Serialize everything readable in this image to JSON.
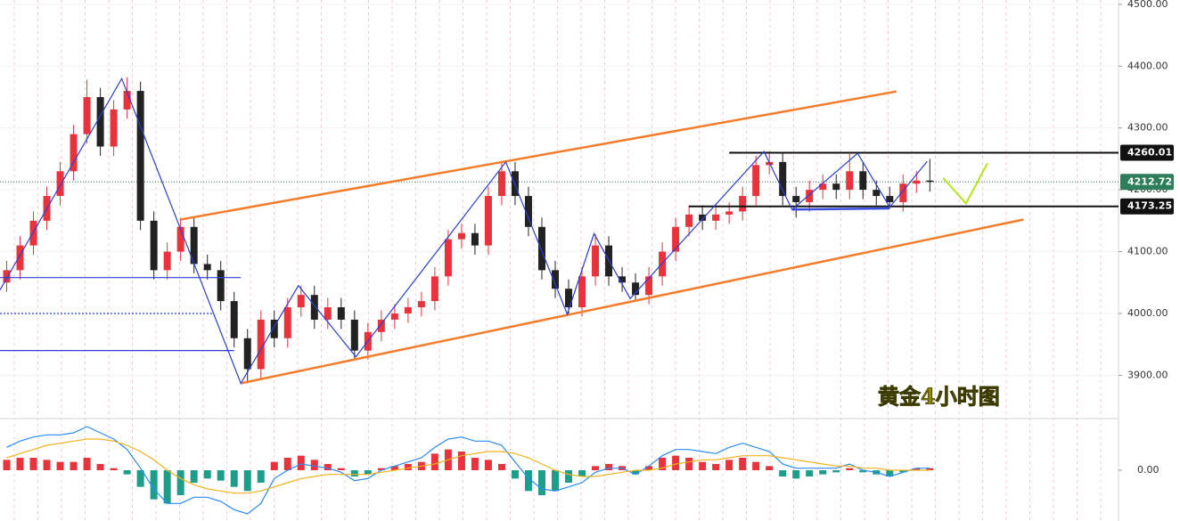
{
  "chart_data": {
    "type": "candlestick",
    "xlim": [
      -0.5,
      83.1
    ],
    "ylim": [
      3830,
      4507
    ],
    "yticks": [
      {
        "value": 3900,
        "label": "3900.00"
      },
      {
        "value": 4000,
        "label": "4000.00"
      },
      {
        "value": 4100,
        "label": "4100.00"
      },
      {
        "value": 4200,
        "label": "4200.00"
      },
      {
        "value": 4300,
        "label": "4300.00"
      },
      {
        "value": 4400,
        "label": "4400.00"
      },
      {
        "value": 4500,
        "label": "4500.00"
      }
    ],
    "up_color": "#e8333d",
    "down_color": "#222222",
    "open": [
      4050,
      4070,
      4110,
      4150,
      4190,
      4230,
      4290,
      4350,
      4270,
      4330,
      4360,
      4150,
      4070,
      4100,
      4140,
      4080,
      4070,
      4020,
      3960,
      3910,
      3990,
      3960,
      4010,
      4030,
      3990,
      4010,
      3990,
      3940,
      3970,
      3990,
      4000,
      4010,
      4020,
      4060,
      4120,
      4130,
      4110,
      4190,
      4230,
      4190,
      4140,
      4070,
      4040,
      4010,
      4060,
      4110,
      4060,
      4050,
      4030,
      4060,
      4100,
      4140,
      4160,
      4150,
      4160,
      4165,
      4190,
      4240,
      4245,
      4190,
      4180,
      4200,
      4210,
      4200,
      4230,
      4200,
      4190,
      4180,
      4210,
      4215
    ],
    "high": [
      4085,
      4125,
      4165,
      4205,
      4245,
      4305,
      4378,
      4365,
      4345,
      4382,
      4375,
      4165,
      4115,
      4155,
      4155,
      4095,
      4085,
      4035,
      3975,
      4005,
      4005,
      4025,
      4045,
      4045,
      4025,
      4025,
      4005,
      3985,
      4005,
      4015,
      4025,
      4035,
      4075,
      4135,
      4145,
      4145,
      4205,
      4247,
      4245,
      4205,
      4155,
      4085,
      4055,
      4075,
      4128,
      4125,
      4075,
      4065,
      4075,
      4115,
      4155,
      4175,
      4175,
      4175,
      4180,
      4205,
      4255,
      4262,
      4260,
      4205,
      4215,
      4225,
      4225,
      4258,
      4245,
      4215,
      4205,
      4225,
      4230,
      4250
    ],
    "low": [
      4035,
      4055,
      4095,
      4135,
      4175,
      4215,
      4275,
      4255,
      4255,
      4315,
      4135,
      4055,
      4055,
      4085,
      4065,
      4055,
      4005,
      3945,
      3887,
      3895,
      3945,
      3945,
      3995,
      3975,
      3975,
      3975,
      3925,
      3925,
      3955,
      3975,
      3985,
      3995,
      4005,
      4045,
      4105,
      4095,
      4095,
      4175,
      4175,
      4125,
      4055,
      4025,
      3998,
      3995,
      4045,
      4045,
      4035,
      4022,
      4015,
      4045,
      4085,
      4125,
      4135,
      4135,
      4145,
      4150,
      4175,
      4225,
      4175,
      4155,
      4165,
      4185,
      4185,
      4185,
      4185,
      4175,
      4170,
      4165,
      4195,
      4197
    ],
    "close": [
      4070,
      4110,
      4150,
      4190,
      4230,
      4290,
      4350,
      4270,
      4330,
      4360,
      4150,
      4070,
      4100,
      4140,
      4080,
      4070,
      4020,
      3960,
      3910,
      3990,
      3960,
      4010,
      4030,
      3990,
      4010,
      3990,
      3940,
      3970,
      3990,
      4000,
      4010,
      4020,
      4060,
      4120,
      4130,
      4110,
      4190,
      4230,
      4190,
      4140,
      4070,
      4040,
      4010,
      4060,
      4110,
      4060,
      4050,
      4030,
      4060,
      4100,
      4140,
      4160,
      4150,
      4160,
      4165,
      4190,
      4240,
      4245,
      4190,
      4180,
      4200,
      4210,
      4200,
      4230,
      4200,
      4190,
      4180,
      4210,
      4215,
      4212.72
    ],
    "lines": [
      {
        "color": "#f57c2a",
        "width": 2.5,
        "points": [
          [
            13,
            4152
          ],
          [
            66.5,
            4359
          ]
        ]
      },
      {
        "color": "#f57c2a",
        "width": 2.5,
        "points": [
          [
            17.5,
            3887
          ],
          [
            76,
            4152
          ]
        ]
      },
      {
        "color": "#111111",
        "width": 2,
        "points": [
          [
            54,
            4260.01
          ],
          [
            83.1,
            4260.01
          ]
        ]
      },
      {
        "color": "#111111",
        "width": 2,
        "points": [
          [
            51,
            4173.25
          ],
          [
            83.1,
            4173.25
          ]
        ]
      },
      {
        "color": "#2b3fd6",
        "width": 1.2,
        "points": [
          [
            -0.5,
            4058
          ],
          [
            17.5,
            4058
          ]
        ]
      },
      {
        "color": "#2b3fd6",
        "width": 1.2,
        "points": [
          [
            -0.5,
            3940
          ],
          [
            17,
            3940
          ]
        ]
      },
      {
        "color": "#2b3fd6",
        "width": 1.2,
        "dash": true,
        "points": [
          [
            -0.5,
            4000
          ],
          [
            15.5,
            4000
          ]
        ]
      },
      {
        "color": "#3a4fe0",
        "width": 2.5,
        "points": [
          [
            58.7,
            4168
          ],
          [
            66,
            4170
          ]
        ]
      },
      {
        "color": "#2b3fd6",
        "width": 1.2,
        "points": [
          [
            -0.5,
            4038
          ],
          [
            8.6,
            4380
          ],
          [
            17.5,
            3887
          ],
          [
            21.8,
            4045
          ],
          [
            26.1,
            3930
          ],
          [
            37.3,
            4245
          ],
          [
            41.9,
            3999
          ],
          [
            43.9,
            4129
          ],
          [
            46.6,
            4024
          ],
          [
            56.6,
            4262
          ],
          [
            58.7,
            4168
          ],
          [
            63.6,
            4259
          ],
          [
            66,
            4172
          ],
          [
            68.8,
            4246
          ]
        ]
      },
      {
        "color": "#b5e61d",
        "width": 2,
        "points": [
          [
            70,
            4219
          ],
          [
            71.7,
            4178
          ],
          [
            73.3,
            4243
          ]
        ]
      }
    ],
    "price_marks": [
      {
        "value": 4260.01,
        "color": "#111111"
      },
      {
        "value": 4212.72,
        "color": "#2e7d5b"
      },
      {
        "value": 4173.25,
        "color": "#111111"
      }
    ],
    "annotation": "黄金4小时图",
    "macd": {
      "ylim": [
        -24,
        24
      ],
      "yticks": [
        {
          "value": 0,
          "label": "0.00"
        }
      ],
      "up_color": "#e8333d",
      "down_color": "#1e9e8a",
      "hist": [
        5,
        6,
        6,
        5,
        4,
        4,
        6,
        3,
        1,
        -2,
        -8,
        -14,
        -16,
        -12,
        -6,
        -4,
        -5,
        -8,
        -10,
        -6,
        4,
        6,
        7,
        5,
        3,
        1,
        -3,
        -2,
        1,
        2,
        3,
        4,
        8,
        10,
        9,
        6,
        5,
        3,
        -4,
        -10,
        -12,
        -10,
        -6,
        -3,
        2,
        3,
        2,
        -2,
        2,
        6,
        7,
        6,
        4,
        3,
        5,
        6,
        4,
        2,
        -3,
        -4,
        -3,
        -2,
        -1,
        1,
        -1,
        -2,
        -3,
        -1,
        1,
        1
      ],
      "series": [
        {
          "color": "#2a8bf2",
          "values": [
            11,
            14,
            16,
            17,
            17,
            18,
            21,
            18,
            15,
            10,
            1,
            -9,
            -16,
            -16,
            -13,
            -13,
            -15,
            -19,
            -21,
            -16,
            -4,
            0,
            3,
            2,
            1,
            -1,
            -5,
            -4,
            0,
            2,
            4,
            6,
            11,
            15,
            16,
            14,
            14,
            12,
            4,
            -4,
            -9,
            -10,
            -8,
            -6,
            -1,
            1,
            1,
            -2,
            2,
            7,
            10,
            10,
            9,
            8,
            11,
            13,
            11,
            9,
            3,
            1,
            1,
            1,
            1,
            3,
            0,
            -1,
            -3,
            -1,
            1,
            1
          ]
        },
        {
          "color": "#f2b21e",
          "values": [
            6,
            8,
            10,
            12,
            13,
            14,
            15,
            15,
            14,
            12,
            9,
            5,
            0,
            -4,
            -7,
            -9,
            -10,
            -11,
            -11,
            -10,
            -8,
            -6,
            -4,
            -3,
            -2,
            -2,
            -2,
            -2,
            -1,
            0,
            1,
            2,
            3,
            5,
            7,
            8,
            9,
            9,
            8,
            6,
            3,
            0,
            -2,
            -3,
            -3,
            -2,
            -1,
            0,
            0,
            1,
            3,
            4,
            5,
            5,
            6,
            7,
            7,
            7,
            6,
            5,
            4,
            3,
            2,
            2,
            1,
            1,
            0,
            0,
            0,
            0
          ]
        }
      ]
    }
  }
}
